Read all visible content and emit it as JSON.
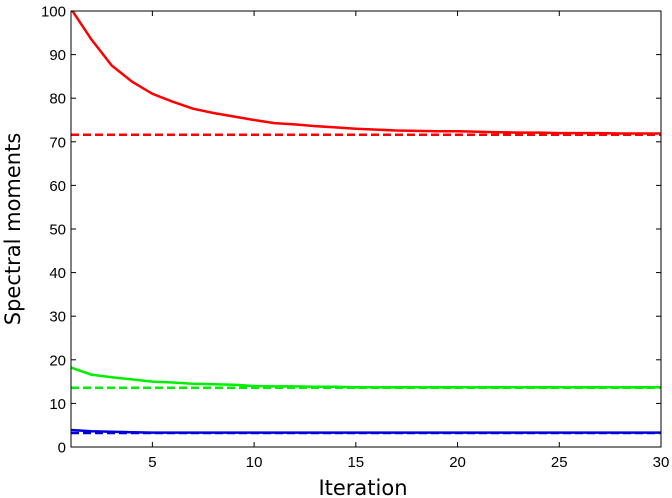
{
  "chart_data": {
    "type": "line",
    "title": "",
    "xlabel": "Iteration",
    "ylabel": "Spectral moments",
    "xlim": [
      1,
      30
    ],
    "ylim": [
      0,
      100
    ],
    "xticks": [
      5,
      10,
      15,
      20,
      25,
      30
    ],
    "yticks": [
      0,
      10,
      20,
      30,
      40,
      50,
      60,
      70,
      80,
      90,
      100
    ],
    "grid": false,
    "legend": "none",
    "x": [
      1,
      2,
      3,
      4,
      5,
      6,
      7,
      8,
      9,
      10,
      11,
      12,
      13,
      14,
      15,
      16,
      17,
      18,
      19,
      20,
      21,
      22,
      23,
      24,
      25,
      26,
      27,
      28,
      29,
      30
    ],
    "series": [
      {
        "color": "#ff0000",
        "style": "solid",
        "values": [
          100.5,
          93.5,
          87.5,
          83.8,
          81.0,
          79.2,
          77.6,
          76.6,
          75.8,
          75.0,
          74.3,
          74.0,
          73.6,
          73.3,
          73.0,
          72.8,
          72.6,
          72.5,
          72.4,
          72.4,
          72.3,
          72.2,
          72.1,
          72.1,
          72.0,
          72.0,
          72.0,
          71.9,
          71.9,
          71.9
        ]
      },
      {
        "color": "#ff0000",
        "style": "dashed",
        "values": [
          71.6,
          71.6,
          71.6,
          71.6,
          71.6,
          71.6,
          71.6,
          71.6,
          71.6,
          71.6,
          71.6,
          71.6,
          71.6,
          71.6,
          71.6,
          71.6,
          71.6,
          71.6,
          71.6,
          71.6,
          71.6,
          71.6,
          71.6,
          71.6,
          71.6,
          71.6,
          71.6,
          71.6,
          71.6,
          71.6
        ]
      },
      {
        "color": "#00ee00",
        "style": "solid",
        "values": [
          18.2,
          16.6,
          16.0,
          15.5,
          15.0,
          14.8,
          14.5,
          14.4,
          14.3,
          14.0,
          13.9,
          13.9,
          13.8,
          13.8,
          13.7,
          13.7,
          13.7,
          13.7,
          13.7,
          13.7,
          13.7,
          13.7,
          13.7,
          13.7,
          13.7,
          13.7,
          13.7,
          13.7,
          13.7,
          13.7
        ]
      },
      {
        "color": "#00ee00",
        "style": "dashed",
        "values": [
          13.6,
          13.6,
          13.6,
          13.6,
          13.6,
          13.6,
          13.6,
          13.6,
          13.6,
          13.6,
          13.6,
          13.6,
          13.6,
          13.6,
          13.6,
          13.6,
          13.6,
          13.6,
          13.6,
          13.6,
          13.6,
          13.6,
          13.6,
          13.6,
          13.6,
          13.6,
          13.6,
          13.6,
          13.6,
          13.6
        ]
      },
      {
        "color": "#0000dd",
        "style": "solid",
        "values": [
          3.9,
          3.6,
          3.5,
          3.4,
          3.3,
          3.3,
          3.3,
          3.3,
          3.3,
          3.3,
          3.3,
          3.3,
          3.3,
          3.3,
          3.3,
          3.3,
          3.3,
          3.3,
          3.3,
          3.3,
          3.3,
          3.3,
          3.3,
          3.3,
          3.3,
          3.3,
          3.3,
          3.3,
          3.3,
          3.3
        ]
      },
      {
        "color": "#0000dd",
        "style": "dashed",
        "values": [
          3.2,
          3.2,
          3.2,
          3.2,
          3.2,
          3.2,
          3.2,
          3.2,
          3.2,
          3.2,
          3.2,
          3.2,
          3.2,
          3.2,
          3.2,
          3.2,
          3.2,
          3.2,
          3.2,
          3.2,
          3.2,
          3.2,
          3.2,
          3.2,
          3.2,
          3.2,
          3.2,
          3.2,
          3.2,
          3.2
        ]
      }
    ]
  }
}
